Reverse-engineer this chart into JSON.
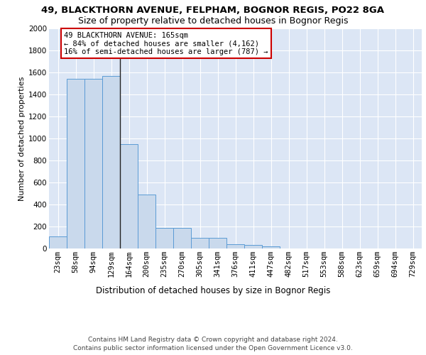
{
  "title1": "49, BLACKTHORN AVENUE, FELPHAM, BOGNOR REGIS, PO22 8GA",
  "title2": "Size of property relative to detached houses in Bognor Regis",
  "xlabel": "Distribution of detached houses by size in Bognor Regis",
  "ylabel": "Number of detached properties",
  "categories": [
    "23sqm",
    "58sqm",
    "94sqm",
    "129sqm",
    "164sqm",
    "200sqm",
    "235sqm",
    "270sqm",
    "305sqm",
    "341sqm",
    "376sqm",
    "411sqm",
    "447sqm",
    "482sqm",
    "517sqm",
    "553sqm",
    "588sqm",
    "623sqm",
    "659sqm",
    "694sqm",
    "729sqm"
  ],
  "values": [
    110,
    1540,
    1545,
    1570,
    950,
    490,
    185,
    185,
    100,
    100,
    40,
    30,
    20,
    0,
    0,
    0,
    0,
    0,
    0,
    0,
    0
  ],
  "bar_color": "#c9d9ec",
  "bar_edge_color": "#5b9bd5",
  "background_color": "#dce6f5",
  "vline_x_index": 4,
  "vline_color": "#222222",
  "annotation_text": "49 BLACKTHORN AVENUE: 165sqm\n← 84% of detached houses are smaller (4,162)\n16% of semi-detached houses are larger (787) →",
  "annotation_box_edge": "#cc0000",
  "ylim": [
    0,
    2000
  ],
  "yticks": [
    0,
    200,
    400,
    600,
    800,
    1000,
    1200,
    1400,
    1600,
    1800,
    2000
  ],
  "footnote": "Contains HM Land Registry data © Crown copyright and database right 2024.\nContains public sector information licensed under the Open Government Licence v3.0.",
  "title1_fontsize": 9.5,
  "title2_fontsize": 9,
  "xlabel_fontsize": 8.5,
  "ylabel_fontsize": 8,
  "tick_fontsize": 7.5,
  "annotation_fontsize": 7.5,
  "footnote_fontsize": 6.5
}
